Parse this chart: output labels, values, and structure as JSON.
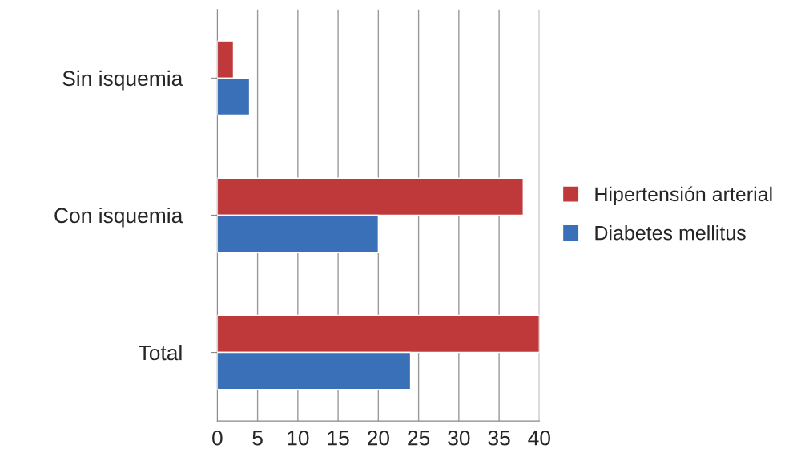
{
  "chart_data": {
    "type": "bar",
    "orientation": "horizontal",
    "categories": [
      "Sin isquemia",
      "Con isquemia",
      "Total"
    ],
    "series": [
      {
        "name": "Hipertensión arterial",
        "color": "#c0393a",
        "values": [
          2,
          38,
          40
        ]
      },
      {
        "name": "Diabetes mellitus",
        "color": "#3a70b8",
        "values": [
          4,
          20,
          24
        ]
      }
    ],
    "xlim": [
      0,
      40
    ],
    "xticks": [
      0,
      5,
      10,
      15,
      20,
      25,
      30,
      35,
      40
    ],
    "grid": "x",
    "legend": "right"
  }
}
